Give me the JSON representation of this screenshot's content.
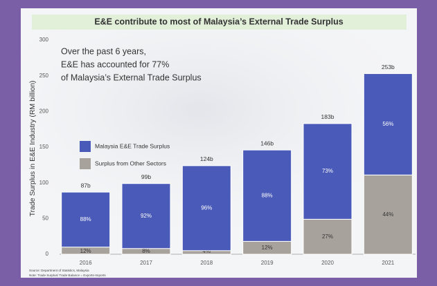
{
  "chart_data": {
    "type": "stacked-bar",
    "title": "E&E contribute to most of Malaysia’s External Trade Surplus",
    "annotation": [
      "Over the past 6 years,",
      "E&E has accounted for 77%",
      "of Malaysia’s External Trade Surplus"
    ],
    "y_label": "Trade Surplus in E&E Industry (RM billion)",
    "categories": [
      "2016",
      "2017",
      "2018",
      "2019",
      "2020",
      "2021"
    ],
    "series": [
      {
        "name": "Surplus from Other Sectors",
        "color": "#a8a29c",
        "values": [
          10,
          8,
          5,
          18,
          49,
          111
        ],
        "share_labels": [
          "12%",
          "8%",
          "4%",
          "12%",
          "27%",
          "44%"
        ]
      },
      {
        "name": "Malaysia E&E Trade Surplus",
        "color": "#4a5ab8",
        "values": [
          77,
          91,
          119,
          128,
          134,
          142
        ],
        "share_labels": [
          "88%",
          "92%",
          "96%",
          "88%",
          "73%",
          "56%"
        ]
      }
    ],
    "total_labels": [
      "87b",
      "99b",
      "124b",
      "146b",
      "183b",
      "253b"
    ],
    "ylim": [
      0,
      300
    ],
    "yticks": [
      0,
      50,
      100,
      150,
      200,
      250,
      300
    ],
    "grid": false,
    "notes": [
      "Source: Department of Statistics, Malaysia",
      "Note: Trade Surplus/ Trade Balance = Exports-Imports"
    ]
  }
}
